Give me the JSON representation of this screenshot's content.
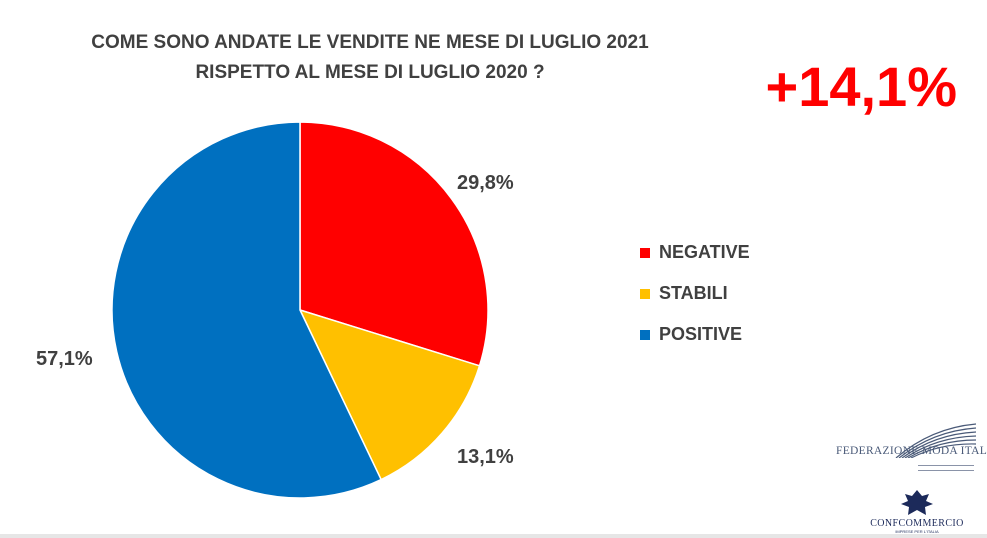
{
  "title_line1": "COME SONO ANDATE LE VENDITE NE MESE DI LUGLIO 2021",
  "title_line2": "RISPETTO AL MESE DI LUGLIO 2020 ?",
  "headline_delta": "+14,1%",
  "colors": {
    "negative": "#ff0000",
    "stabili": "#ffc000",
    "positive": "#0070c0",
    "delta": "#ff0000",
    "text": "#404040"
  },
  "chart_data": {
    "type": "pie",
    "title": "COME SONO ANDATE LE VENDITE NE MESE DI LUGLIO 2021 RISPETTO AL MESE DI LUGLIO 2020 ?",
    "categories": [
      "NEGATIVE",
      "STABILI",
      "POSITIVE"
    ],
    "values": [
      29.8,
      13.1,
      57.1
    ],
    "value_labels": [
      "29,8%",
      "13,1%",
      "57,1%"
    ],
    "colors": [
      "#ff0000",
      "#ffc000",
      "#0070c0"
    ],
    "legend_position": "right"
  },
  "legend": [
    {
      "label": "NEGATIVE",
      "color": "#ff0000"
    },
    {
      "label": "STABILI",
      "color": "#ffc000"
    },
    {
      "label": "POSITIVE",
      "color": "#0070c0"
    }
  ],
  "logos": {
    "federazione": "FEDERAZIONE MODA ITALIA",
    "confcommercio": "CONFCOMMERCIO",
    "confcommercio_tagline": "IMPRESE PER L'ITALIA"
  }
}
